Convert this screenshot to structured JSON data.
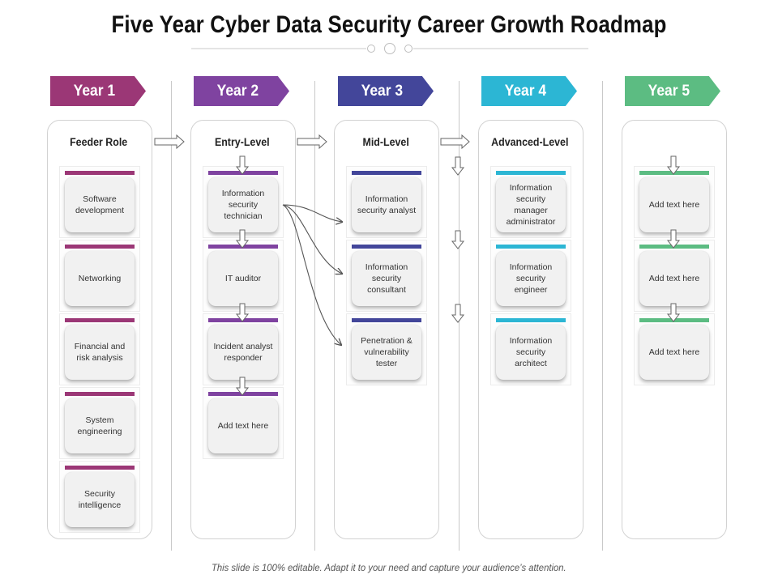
{
  "title": "Five Year Cyber Data Security Career Growth Roadmap",
  "footer": "This slide is 100% editable. Adapt it to your need and capture your audience’s attention.",
  "colors": {
    "year1": "#9b3776",
    "year2": "#7f43a0",
    "year3": "#43469a",
    "year4": "#2cb6d4",
    "year5": "#5cbc82"
  },
  "years": [
    {
      "label": "Year 1",
      "color": "#9b3776"
    },
    {
      "label": "Year 2",
      "color": "#7f43a0"
    },
    {
      "label": "Year 3",
      "color": "#43469a"
    },
    {
      "label": "Year 4",
      "color": "#2cb6d4"
    },
    {
      "label": "Year 5",
      "color": "#5cbc82"
    }
  ],
  "columns": [
    {
      "title": "Feeder Role",
      "color": "#9b3776",
      "cards": [
        "Software development",
        "Networking",
        "Financial and risk analysis",
        "System engineering",
        "Security intelligence"
      ]
    },
    {
      "title": "Entry-Level",
      "color": "#7f43a0",
      "cards": [
        "Information security technician",
        "IT auditor",
        "Incident analyst responder",
        "Add text here"
      ]
    },
    {
      "title": "Mid-Level",
      "color": "#43469a",
      "cards": [
        "Information security analyst",
        "Information security consultant",
        "Penetration & vulnerability tester"
      ]
    },
    {
      "title": "Advanced-Level",
      "color": "#2cb6d4",
      "cards": [
        "Information security manager administrator",
        "Information security engineer",
        "Information security architect"
      ]
    },
    {
      "title": "",
      "color": "#5cbc82",
      "cards": [
        "Add text here",
        "Add text here",
        "Add text here"
      ]
    }
  ]
}
